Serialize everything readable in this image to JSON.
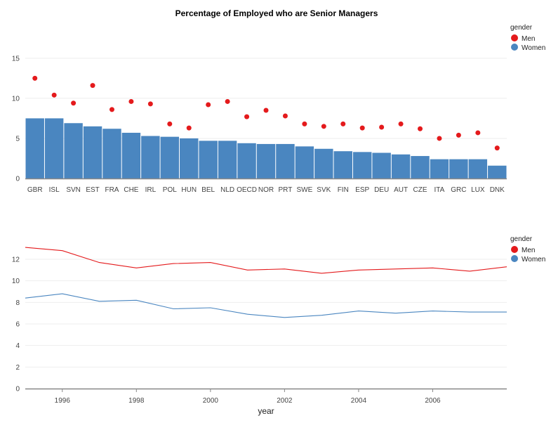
{
  "chart_data": [
    {
      "type": "bar",
      "title": "Percentage of Employed who are Senior Managers",
      "xlabel": "",
      "ylabel": "",
      "categories": [
        "GBR",
        "ISL",
        "SVN",
        "EST",
        "FRA",
        "CHE",
        "IRL",
        "POL",
        "HUN",
        "BEL",
        "NLD",
        "OECD",
        "NOR",
        "PRT",
        "SWE",
        "SVK",
        "FIN",
        "ESP",
        "DEU",
        "AUT",
        "CZE",
        "ITA",
        "GRC",
        "LUX",
        "DNK"
      ],
      "series": [
        {
          "name": "Women",
          "mark": "bar",
          "values": [
            7.5,
            7.5,
            6.9,
            6.5,
            6.2,
            5.7,
            5.3,
            5.2,
            5.0,
            4.7,
            4.7,
            4.4,
            4.3,
            4.3,
            4.0,
            3.7,
            3.4,
            3.3,
            3.2,
            3.0,
            2.8,
            2.4,
            2.4,
            2.4,
            1.6
          ]
        },
        {
          "name": "Men",
          "mark": "point",
          "values": [
            12.5,
            10.4,
            9.4,
            11.6,
            8.6,
            9.6,
            9.3,
            6.8,
            6.3,
            9.2,
            9.6,
            7.7,
            8.5,
            7.8,
            6.8,
            6.5,
            6.8,
            6.3,
            6.4,
            6.8,
            6.2,
            5.0,
            5.4,
            5.7,
            3.8
          ]
        }
      ],
      "ylim": [
        0,
        17
      ],
      "yticks": [
        0,
        5,
        10,
        15
      ],
      "grid": true,
      "legend": {
        "title": "gender",
        "position": "top-right",
        "entries": [
          "Men",
          "Women"
        ]
      }
    },
    {
      "type": "line",
      "title": "",
      "xlabel": "year",
      "ylabel": "",
      "x": [
        1995,
        1996,
        1997,
        1998,
        1999,
        2000,
        2001,
        2002,
        2003,
        2004,
        2005,
        2006,
        2007,
        2008
      ],
      "series": [
        {
          "name": "Men",
          "values": [
            13.1,
            12.8,
            11.7,
            11.2,
            11.6,
            11.7,
            11.0,
            11.1,
            10.7,
            11.0,
            11.1,
            11.2,
            10.9,
            11.3
          ]
        },
        {
          "name": "Women",
          "values": [
            8.4,
            8.8,
            8.1,
            8.2,
            7.4,
            7.5,
            6.9,
            6.6,
            6.8,
            7.2,
            7.0,
            7.2,
            7.1,
            7.1
          ]
        }
      ],
      "xlim": [
        1995,
        2008
      ],
      "xticks": [
        1996,
        1998,
        2000,
        2002,
        2004,
        2006
      ],
      "ylim": [
        0,
        13.5
      ],
      "yticks": [
        0,
        2,
        4,
        6,
        8,
        10,
        12
      ],
      "grid": true,
      "legend": {
        "title": "gender",
        "position": "top-right",
        "entries": [
          "Men",
          "Women"
        ]
      }
    }
  ],
  "colors": {
    "Men": "#e41a1c",
    "Women": "#4a86c0"
  }
}
